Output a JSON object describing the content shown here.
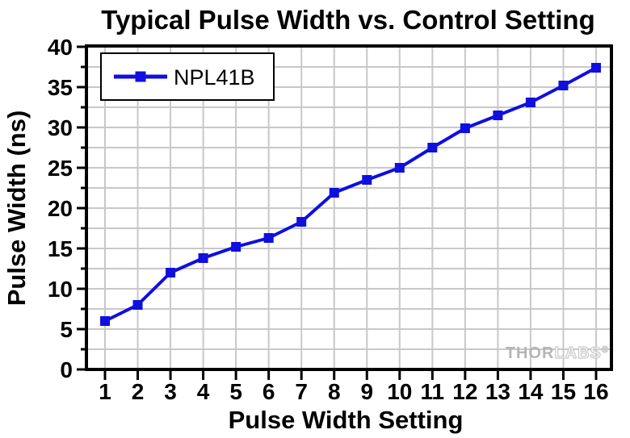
{
  "chart_data": {
    "type": "line",
    "title": "Typical Pulse Width vs. Control Setting",
    "xlabel": "Pulse Width Setting",
    "ylabel": "Pulse Width (ns)",
    "x": [
      1,
      2,
      3,
      4,
      5,
      6,
      7,
      8,
      9,
      10,
      11,
      12,
      13,
      14,
      15,
      16
    ],
    "series": [
      {
        "name": "NPL41B",
        "values": [
          6.0,
          8.0,
          12.0,
          13.8,
          15.2,
          16.3,
          18.3,
          21.9,
          23.5,
          25.0,
          27.5,
          29.9,
          31.5,
          33.1,
          35.2,
          37.4
        ],
        "marker": "square"
      }
    ],
    "xticks": [
      1,
      2,
      3,
      4,
      5,
      6,
      7,
      8,
      9,
      10,
      11,
      12,
      13,
      14,
      15,
      16
    ],
    "yticks": [
      0,
      5,
      10,
      15,
      20,
      25,
      30,
      35,
      40
    ],
    "ylim": [
      0,
      40
    ],
    "ytick_minor": 2.5,
    "grid": true,
    "legend_position": "top-left"
  },
  "legend": {
    "label": "NPL41B"
  },
  "watermark": {
    "part1": "THOR",
    "part2": "LABS",
    "reg": "®"
  },
  "colors": {
    "line": "#0f0fe0",
    "grid": "#c8c8c8",
    "axis": "#000000",
    "plot_background": "#ffffff",
    "watermark_solid": "#b5b5b5",
    "watermark_outline": "#c9c9c9"
  }
}
